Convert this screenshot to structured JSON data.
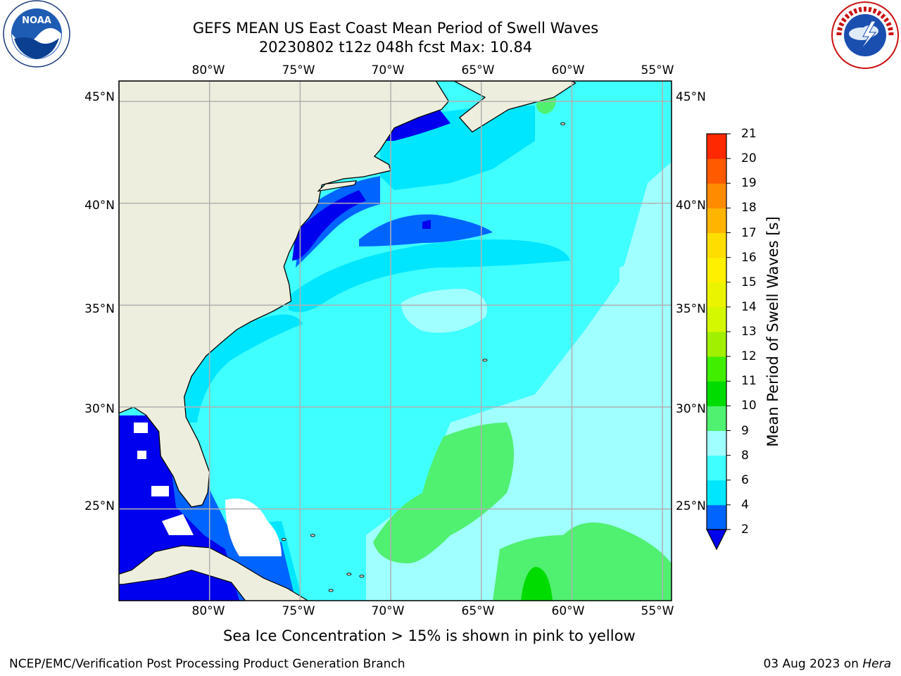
{
  "title": {
    "line1": "GEFS MEAN US East Coast Mean Period of Swell Waves",
    "line2": "20230802 t12z 048h fcst   Max: 10.84"
  },
  "logos": {
    "left": "noaa-logo",
    "left_text": "NOAA",
    "right": "nws-logo",
    "right_text": "NATIONAL WEATHER SERVICE"
  },
  "map": {
    "projection": "plate carree",
    "extent": {
      "lon": [
        -85,
        -54.5
      ],
      "lat": [
        20.5,
        46
      ]
    },
    "lon_labels": [
      "80°W",
      "75°W",
      "70°W",
      "65°W",
      "60°W",
      "55°W"
    ],
    "lat_labels": [
      "45°N",
      "40°N",
      "35°N",
      "30°N",
      "25°N"
    ],
    "grid": true,
    "land_color": "#eeeede",
    "masked_color": "#ffffff",
    "max_value": 10.84
  },
  "colorbar": {
    "label": "Mean Period of Swell Waves [s]",
    "ticks": [
      "2",
      "4",
      "6",
      "8",
      "9",
      "10",
      "11",
      "12",
      "13",
      "14",
      "15",
      "16",
      "17",
      "18",
      "19",
      "20",
      "21"
    ],
    "colors": [
      "#0064ff",
      "#00e6ff",
      "#40ffff",
      "#a0ffff",
      "#50f070",
      "#00dc00",
      "#40ee00",
      "#a0f000",
      "#d4f800",
      "#eaf400",
      "#fff000",
      "#ffdd00",
      "#ffb400",
      "#ff8c00",
      "#ff5a00",
      "#ff2800"
    ],
    "extend_min_color": "#0000ee"
  },
  "footer": {
    "sea_ice_note": "Sea Ice Concentration > 15% is shown in pink to yellow",
    "credit_left": "NCEP/EMC/Verification Post Processing Product Generation Branch",
    "credit_date": "03 Aug 2023 on",
    "credit_host": "Hera"
  }
}
